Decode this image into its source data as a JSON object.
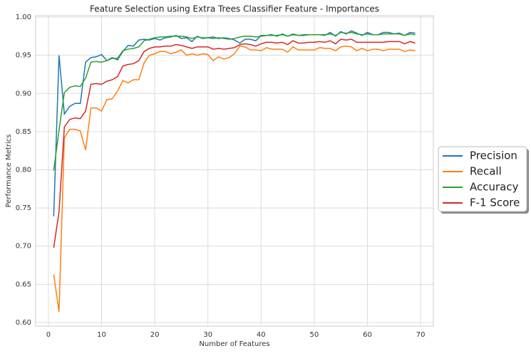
{
  "chart_data": {
    "type": "line",
    "title": "Feature Selection using Extra Trees Classifier Feature - Importances",
    "x_label": "Number of Features",
    "y_label": "Performance Metrics",
    "x": [
      1,
      2,
      3,
      4,
      5,
      6,
      7,
      8,
      9,
      10,
      11,
      12,
      13,
      14,
      15,
      16,
      17,
      18,
      19,
      20,
      21,
      22,
      23,
      24,
      25,
      26,
      27,
      28,
      29,
      30,
      31,
      32,
      33,
      34,
      35,
      36,
      37,
      38,
      39,
      40,
      41,
      42,
      43,
      44,
      45,
      46,
      47,
      48,
      49,
      50,
      51,
      52,
      53,
      54,
      55,
      56,
      57,
      58,
      59,
      60,
      61,
      62,
      63,
      64,
      65,
      66,
      67,
      68,
      69
    ],
    "series": [
      {
        "name": "Precision",
        "color": "#1f77b4",
        "values": [
          0.739,
          0.95,
          0.873,
          0.883,
          0.887,
          0.887,
          0.941,
          0.947,
          0.948,
          0.951,
          0.943,
          0.947,
          0.944,
          0.955,
          0.963,
          0.962,
          0.97,
          0.971,
          0.97,
          0.972,
          0.97,
          0.973,
          0.974,
          0.976,
          0.972,
          0.973,
          0.968,
          0.975,
          0.972,
          0.973,
          0.974,
          0.972,
          0.973,
          0.972,
          0.97,
          0.966,
          0.971,
          0.971,
          0.969,
          0.976,
          0.976,
          0.977,
          0.975,
          0.978,
          0.975,
          0.977,
          0.976,
          0.976,
          0.977,
          0.977,
          0.977,
          0.976,
          0.98,
          0.975,
          0.981,
          0.978,
          0.982,
          0.979,
          0.976,
          0.98,
          0.977,
          0.977,
          0.98,
          0.98,
          0.978,
          0.979,
          0.976,
          0.98,
          0.979
        ]
      },
      {
        "name": "Recall",
        "color": "#ff7f0e",
        "values": [
          0.663,
          0.614,
          0.842,
          0.853,
          0.853,
          0.851,
          0.826,
          0.881,
          0.881,
          0.877,
          0.892,
          0.893,
          0.903,
          0.917,
          0.914,
          0.918,
          0.918,
          0.94,
          0.95,
          0.952,
          0.955,
          0.955,
          0.952,
          0.954,
          0.957,
          0.95,
          0.952,
          0.95,
          0.952,
          0.951,
          0.943,
          0.948,
          0.945,
          0.947,
          0.952,
          0.962,
          0.961,
          0.957,
          0.957,
          0.956,
          0.96,
          0.958,
          0.958,
          0.958,
          0.954,
          0.961,
          0.957,
          0.957,
          0.957,
          0.957,
          0.96,
          0.959,
          0.959,
          0.956,
          0.961,
          0.962,
          0.961,
          0.956,
          0.959,
          0.956,
          0.958,
          0.958,
          0.956,
          0.958,
          0.958,
          0.958,
          0.955,
          0.957,
          0.956
        ]
      },
      {
        "name": "Accuracy",
        "color": "#2ca02c",
        "values": [
          0.799,
          0.852,
          0.901,
          0.908,
          0.91,
          0.909,
          0.92,
          0.941,
          0.942,
          0.941,
          0.943,
          0.946,
          0.946,
          0.956,
          0.958,
          0.959,
          0.961,
          0.969,
          0.971,
          0.973,
          0.974,
          0.974,
          0.975,
          0.975,
          0.975,
          0.974,
          0.972,
          0.974,
          0.973,
          0.973,
          0.972,
          0.973,
          0.972,
          0.971,
          0.972,
          0.974,
          0.975,
          0.975,
          0.974,
          0.975,
          0.976,
          0.976,
          0.976,
          0.977,
          0.975,
          0.978,
          0.976,
          0.977,
          0.977,
          0.977,
          0.977,
          0.977,
          0.978,
          0.976,
          0.98,
          0.979,
          0.98,
          0.978,
          0.977,
          0.978,
          0.977,
          0.977,
          0.978,
          0.978,
          0.978,
          0.978,
          0.976,
          0.978,
          0.977
        ]
      },
      {
        "name": "F-1 Score",
        "color": "#d62728",
        "values": [
          0.698,
          0.745,
          0.856,
          0.866,
          0.868,
          0.867,
          0.877,
          0.912,
          0.913,
          0.912,
          0.916,
          0.918,
          0.922,
          0.936,
          0.938,
          0.939,
          0.943,
          0.955,
          0.959,
          0.961,
          0.961,
          0.962,
          0.962,
          0.964,
          0.963,
          0.961,
          0.959,
          0.961,
          0.961,
          0.961,
          0.958,
          0.959,
          0.958,
          0.959,
          0.96,
          0.964,
          0.965,
          0.964,
          0.962,
          0.965,
          0.967,
          0.967,
          0.966,
          0.967,
          0.964,
          0.969,
          0.966,
          0.966,
          0.967,
          0.967,
          0.968,
          0.967,
          0.969,
          0.965,
          0.971,
          0.97,
          0.971,
          0.967,
          0.967,
          0.967,
          0.967,
          0.967,
          0.967,
          0.968,
          0.968,
          0.968,
          0.965,
          0.968,
          0.966
        ]
      }
    ],
    "xlim": [
      -2.4,
      72.4
    ],
    "ylim": [
      0.5953,
      1.0019
    ],
    "xticks": [
      0,
      10,
      20,
      30,
      40,
      50,
      60,
      70
    ],
    "yticks": [
      {
        "value": 0.6,
        "label": "0.60"
      },
      0.65,
      {
        "value": 0.7,
        "label": "0.70"
      },
      0.75,
      {
        "value": 0.8,
        "label": "0.80"
      },
      0.85,
      {
        "value": 0.9,
        "label": "0.90"
      },
      0.95,
      {
        "value": 1.0,
        "label": "1.00"
      }
    ],
    "grid": true,
    "legend": "right"
  }
}
